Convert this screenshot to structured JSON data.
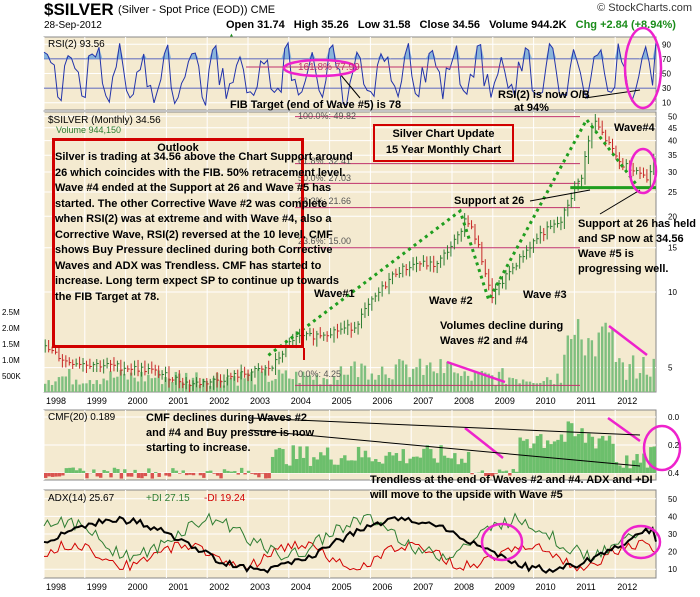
{
  "header": {
    "symbol": "$SILVER",
    "name": "(Silver - Spot Price (EOD)) CME",
    "source": "© StockCharts.com",
    "date": "28-Sep-2012",
    "open": "Open 31.74",
    "high": "High 35.26",
    "low": "Low 31.58",
    "close": "Close 34.56",
    "volume": "Volume 944.2K",
    "change": "Chg +2.84 (+8.94%)",
    "change_symbol": "▲"
  },
  "colors": {
    "panel_bg": "#f4ead0",
    "grid": "#ffffff",
    "price_up": "#2e7d32",
    "price_down": "#c62828",
    "volume": "#7fbf7f",
    "rsi_line": "#2233aa",
    "rsi_fill": "#6fa8dc",
    "fib": "#c0326c",
    "cmf_pos": "#6cbf6c",
    "cmf_neg": "#d9534f",
    "adx": "#000000",
    "plus_di": "#2e7d32",
    "minus_di": "#d10000",
    "annotation_red": "#d10000",
    "magenta": "#ee22cc",
    "trend_green": "#1f9e1f"
  },
  "chart_data": [
    {
      "type": "line",
      "panel": "rsi",
      "title": "RSI(2) 93.56",
      "ylim": [
        0,
        100
      ],
      "y_ticks": [
        10,
        30,
        50,
        70,
        90
      ],
      "levels": [
        30,
        70
      ],
      "x": [
        "1998",
        "1999",
        "2000",
        "2001",
        "2002",
        "2003",
        "2004",
        "2005",
        "2006",
        "2007",
        "2008",
        "2009",
        "2010",
        "2011",
        "2012"
      ],
      "series": [
        {
          "name": "RSI(2)",
          "last": 93.56
        }
      ],
      "annotations": [
        "161.8% 77.99",
        "FIB Target (end of Wave #5) is 78",
        "RSI(2) is now O/B at 94%"
      ]
    },
    {
      "type": "line",
      "panel": "price",
      "title": "$SILVER (Monthly) 34.56",
      "subtitle": "Volume 944,150",
      "ylim": [
        4,
        50
      ],
      "log_scale": true,
      "y_ticks": [
        5,
        10,
        15,
        20,
        25,
        30,
        35,
        40,
        45,
        50
      ],
      "volume_ticks": [
        "500K",
        "1.0M",
        "1.5M",
        "2.0M",
        "2.5M"
      ],
      "x": [
        "1998",
        "1999",
        "2000",
        "2001",
        "2002",
        "2003",
        "2004",
        "2005",
        "2006",
        "2007",
        "2008",
        "2009",
        "2010",
        "2011",
        "2012"
      ],
      "series": [
        {
          "name": "Price",
          "x": [
            1998,
            1998.5,
            1999,
            1999.5,
            2000,
            2000.5,
            2001,
            2001.5,
            2002,
            2002.5,
            2003,
            2003.5,
            2004,
            2004.5,
            2005,
            2005.5,
            2006,
            2006.5,
            2007,
            2007.5,
            2008,
            2008.2,
            2008.5,
            2008.8,
            2009,
            2009.5,
            2010,
            2010.5,
            2011,
            2011.3,
            2011.6,
            2011.9,
            2012,
            2012.3,
            2012.6,
            2012.75
          ],
          "values": [
            6.0,
            5.3,
            5.2,
            5.1,
            5.0,
            4.9,
            4.6,
            4.3,
            4.4,
            4.6,
            4.8,
            5.0,
            6.5,
            6.7,
            7.0,
            7.3,
            9.5,
            12.0,
            13.0,
            12.8,
            16.5,
            20.0,
            15.0,
            9.5,
            10.5,
            13.5,
            17.0,
            19.0,
            29.0,
            48.0,
            40.0,
            33.0,
            32.0,
            31.0,
            28.0,
            34.56
          ]
        }
      ],
      "fib_levels": [
        {
          "label": "100.0%: 49.82",
          "value": 49.82
        },
        {
          "label": "61.8%: 32.41",
          "value": 32.41
        },
        {
          "label": "50.0%: 27.03",
          "value": 27.03
        },
        {
          "label": "38.2%: 21.66",
          "value": 21.66
        },
        {
          "label": "23.6%: 15.00",
          "value": 15.0
        },
        {
          "label": "0.0%: 4.25",
          "value": 4.25
        }
      ],
      "support": 26
    },
    {
      "type": "area",
      "panel": "cmf",
      "title": "CMF(20) 0.189",
      "ylim": [
        -0.05,
        0.45
      ],
      "y_ticks": [
        0.0,
        0.2,
        0.4
      ],
      "x": [
        "1998",
        "1999",
        "2000",
        "2001",
        "2002",
        "2003",
        "2004",
        "2005",
        "2006",
        "2007",
        "2008",
        "2009",
        "2010",
        "2011",
        "2012"
      ],
      "series": [
        {
          "name": "CMF(20)",
          "last": 0.189
        }
      ]
    },
    {
      "type": "line",
      "panel": "adx",
      "title": "ADX(14) 25.67",
      "ylim": [
        5,
        55
      ],
      "y_ticks": [
        10,
        20,
        30,
        40,
        50
      ],
      "x": [
        "1998",
        "1999",
        "2000",
        "2001",
        "2002",
        "2003",
        "2004",
        "2005",
        "2006",
        "2007",
        "2008",
        "2009",
        "2010",
        "2011",
        "2012"
      ],
      "series": [
        {
          "name": "ADX(14)",
          "last": 25.67
        },
        {
          "name": "+DI",
          "last": 27.15
        },
        {
          "name": "-DI",
          "last": 19.24
        }
      ]
    }
  ],
  "labels": {
    "rsi_title": "RSI(2) 93.56",
    "price_title": "$SILVER (Monthly) 34.56",
    "volume_title": "Volume 944,150",
    "cmf_title": "CMF(20) 0.189",
    "adx_title": "ADX(14) 25.67",
    "plus_di": "+DI 27.15",
    "minus_di": "-DI 19.24",
    "fib_100": "100.0%: 49.82",
    "fib_618": "61.8%: 32.41",
    "fib_50": "50.0%: 27.03",
    "fib_382": "38.2%: 21.66",
    "fib_236": "23.6%: 15.00",
    "fib_0": "0.0%: 4.25",
    "fib_1618": "161.8% 77.99",
    "x_years": [
      "1998",
      "1999",
      "2000",
      "2001",
      "2002",
      "2003",
      "2004",
      "2005",
      "2006",
      "2007",
      "2008",
      "2009",
      "2010",
      "2011",
      "2012"
    ],
    "rsi_ticks": [
      "90",
      "70",
      "50",
      "30",
      "10"
    ],
    "price_ticks": [
      "50",
      "45",
      "40",
      "35",
      "30",
      "25",
      "20",
      "15",
      "10",
      "5"
    ],
    "vol_ticks": [
      "2.5M",
      "2.0M",
      "1.5M",
      "1.0M",
      "500K"
    ],
    "cmf_ticks": [
      "0.4",
      "0.2",
      "0.0"
    ],
    "adx_ticks": [
      "50",
      "40",
      "30",
      "20",
      "10"
    ]
  },
  "annotations": {
    "outlook_title": "Outlook",
    "outlook_text": "Silver is trading at 34.56 above the Chart Support around 26 which coincides with the FIB. 50% retracement level. Wave #4 ended at the Support at 26 and Wave #5 has  started. The other Corrective Wave #2 was complete when RSI(2) was at extreme and with Wave #4, also a Corrective Wave, RSI(2) reversed at the 10 level. CMF shows Buy Pressure declined during both Corrective Waves and ADX was Trendless. CMF has started to increase. Long term expect SP to continue up towards the FIB Target at 78.",
    "update_line1": "Silver Chart Update",
    "update_line2": "15 Year Monthly Chart",
    "fib_target": "FIB Target (end of Wave #5) is 78",
    "rsi_ob_1": "RSI(2) is now O/B",
    "rsi_ob_2": "at 94%",
    "wave1": "Wave#1",
    "wave2": "Wave #2",
    "wave3": "Wave #3",
    "wave4": "Wave#4",
    "support26": "Support at 26",
    "support_held": "Support at 26 has held and SP now at 34.56 Wave #5 is progressing well.",
    "volumes": "Volumes decline during Waves #2 and #4",
    "cmf_note": "CMF declines during Waves #2 and #4 and Buy pressure is now starting to increase.",
    "adx_note_1": "Trendless at the end of Waves #2 and #4. ADX and +DI",
    "adx_note_2": "will move to the upside with Wave #5"
  }
}
